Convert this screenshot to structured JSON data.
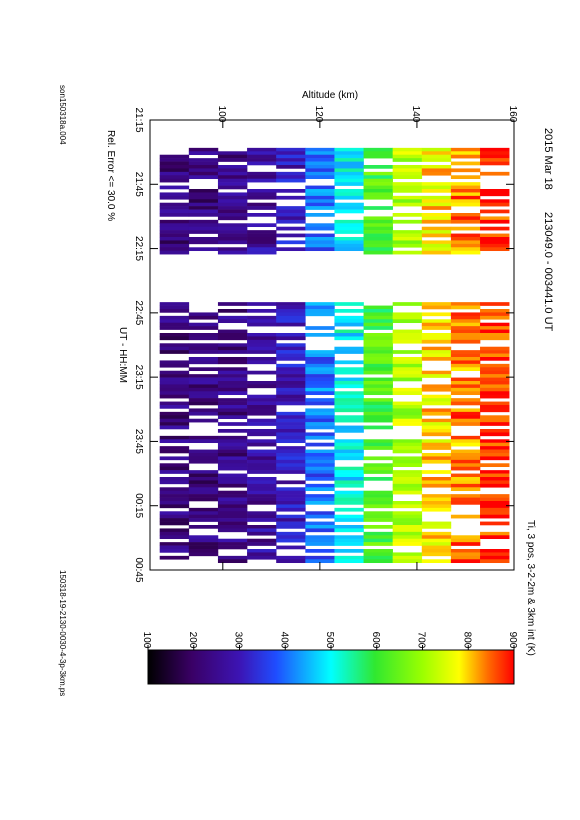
{
  "header": {
    "date": "2015 Mar 18",
    "time_range": "213049.0 - 003441.0 UT",
    "param": "Ti, 3 pos, 3-2-2m & 3km int (K)",
    "rel_error": "Rel. Error <= 30.0 %",
    "site_file": "son150318a.004",
    "plot_file": "150318-19-2130-0030-4-3p-3km.ps"
  },
  "chart_data": {
    "type": "heatmap",
    "xlabel": "UT - HH:MM",
    "ylabel": "Altitude (km)",
    "x_ticks": [
      "21:15",
      "21:45",
      "22:15",
      "22:45",
      "23:15",
      "23:45",
      "00:15",
      "00:45"
    ],
    "y_ticks": [
      "100",
      "120",
      "140",
      "160"
    ],
    "xlim_minutes_after_2115": [
      0,
      210
    ],
    "ylim": [
      85,
      160
    ],
    "colorbar": {
      "label": "Ti, 3 pos, 3-2-2m & 3km int (K)",
      "ticks": [
        "100",
        "200",
        "300",
        "400",
        "500",
        "600",
        "700",
        "800",
        "900"
      ],
      "range": [
        100,
        900
      ]
    },
    "altitude_bins_km": [
      90,
      96,
      102,
      108,
      114,
      120,
      126,
      132,
      138,
      144,
      150,
      156
    ],
    "ti_profile_k": [
      230,
      230,
      240,
      260,
      300,
      400,
      500,
      620,
      720,
      780,
      840,
      880
    ],
    "segments_ut": [
      [
        "21:28",
        "22:17"
      ],
      [
        "22:40",
        "00:40"
      ]
    ]
  }
}
